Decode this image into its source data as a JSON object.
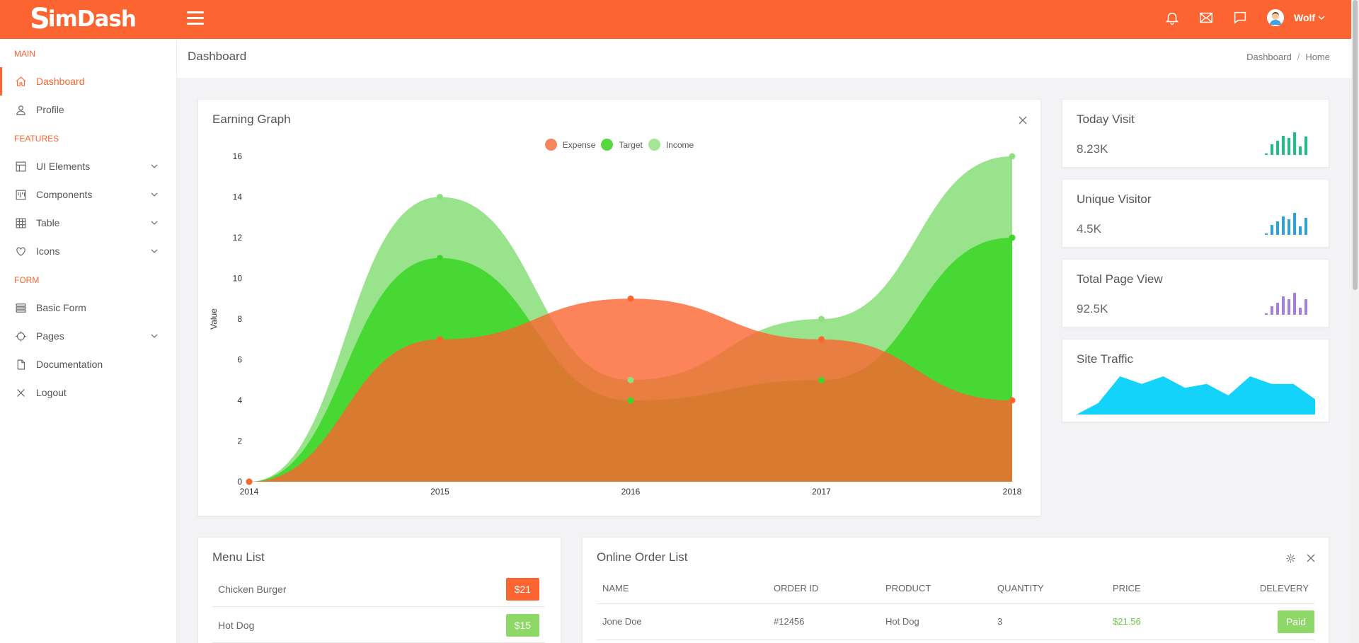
{
  "app": {
    "logo_text": "imDash",
    "logo_mark": "S"
  },
  "header": {
    "user_name": "Wolf"
  },
  "sidebar": {
    "sections": {
      "main": "MAIN",
      "features": "FEATURES",
      "form": "FORM"
    },
    "items": [
      {
        "label": "Dashboard",
        "icon": "home-icon"
      },
      {
        "label": "Profile",
        "icon": "user-icon"
      },
      {
        "label": "UI Elements",
        "icon": "layout-icon"
      },
      {
        "label": "Components",
        "icon": "components-icon"
      },
      {
        "label": "Table",
        "icon": "table-icon"
      },
      {
        "label": "Icons",
        "icon": "heart-icon"
      },
      {
        "label": "Basic Form",
        "icon": "form-icon"
      },
      {
        "label": "Pages",
        "icon": "crosshair-icon"
      },
      {
        "label": "Documentation",
        "icon": "file-icon"
      },
      {
        "label": "Logout",
        "icon": "close-icon"
      }
    ]
  },
  "subheader": {
    "title": "Dashboard",
    "crumb1": "Dashboard",
    "crumb_sep": "/",
    "crumb2": "Home"
  },
  "earning": {
    "title": "Earning Graph"
  },
  "chart_data": {
    "type": "area",
    "x": [
      "2014",
      "2015",
      "2016",
      "2017",
      "2018"
    ],
    "ylabel": "Value",
    "ylim": [
      0,
      16
    ],
    "yticks": [
      0,
      2,
      4,
      6,
      8,
      10,
      12,
      14,
      16
    ],
    "legend_position": "top-center",
    "series": [
      {
        "name": "Expense",
        "values": [
          0,
          7,
          9,
          7,
          4
        ],
        "color": "#fc6431"
      },
      {
        "name": "Target",
        "values": [
          0,
          11,
          4,
          5,
          12
        ],
        "color": "#3fd62a"
      },
      {
        "name": "Income",
        "values": [
          0,
          14,
          5,
          8,
          16
        ],
        "color": "#8ee07f"
      }
    ]
  },
  "stats": [
    {
      "title": "Today Visit",
      "value": "8.23K",
      "color": "#1bbf89",
      "bars": [
        0.05,
        0.45,
        0.6,
        0.8,
        0.7,
        0.95,
        0.35,
        0.75
      ]
    },
    {
      "title": "Unique Visitor",
      "value": "4.5K",
      "color": "#2aa3e0",
      "bars": [
        0.05,
        0.4,
        0.55,
        0.75,
        0.65,
        0.9,
        0.35,
        0.7
      ]
    },
    {
      "title": "Total Page View",
      "value": "92.5K",
      "color": "#a47de6",
      "bars": [
        0.05,
        0.35,
        0.5,
        0.75,
        0.65,
        0.92,
        0.3,
        0.65
      ]
    }
  ],
  "traffic": {
    "title": "Site Traffic",
    "color": "#14d3fa",
    "values": [
      0,
      3,
      10,
      8,
      10,
      7,
      8,
      5,
      10,
      8,
      8,
      4
    ]
  },
  "menu": {
    "title": "Menu List",
    "items": [
      {
        "name": "Chicken Burger",
        "price": "$21",
        "color": "#fc6431"
      },
      {
        "name": "Hot Dog",
        "price": "$15",
        "color": "#8ed868"
      }
    ]
  },
  "orders": {
    "title": "Online Order List",
    "columns": [
      "NAME",
      "ORDER ID",
      "PRODUCT",
      "QUANTITY",
      "PRICE",
      "DELEVERY"
    ],
    "rows": [
      {
        "name": "Jone Doe",
        "order_id": "#12456",
        "product": "Hot Dog",
        "quantity": "3",
        "price": "$21.56",
        "delivery": "Paid"
      }
    ],
    "price_color": "#6cc644"
  }
}
